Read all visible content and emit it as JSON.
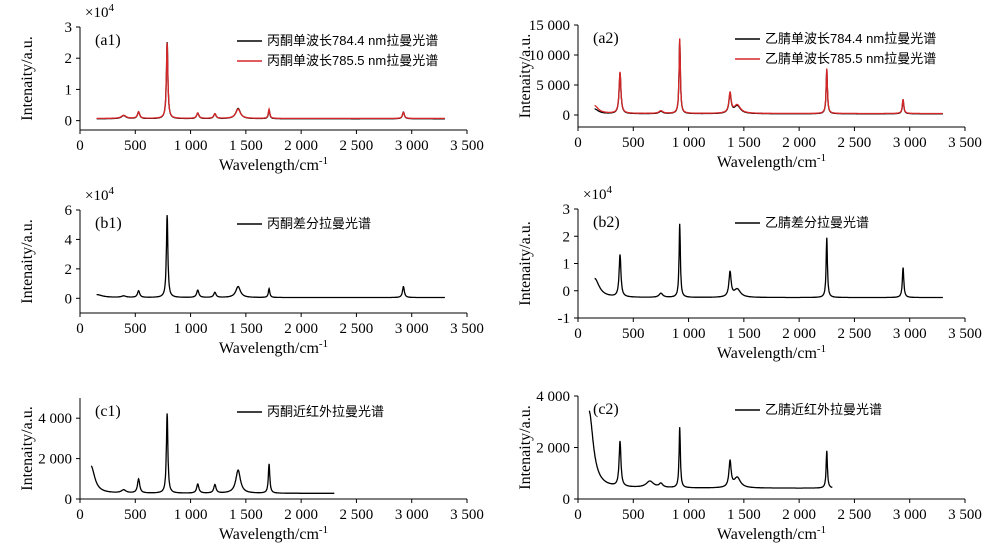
{
  "chart_data": [
    {
      "id": "a1",
      "type": "line",
      "panel_label": "(a1)",
      "scale_label": "×10",
      "scale_exp": "4",
      "xlabel": "Wavelength/cm",
      "xlabel_sup": "-1",
      "ylabel": "Intenaity/a.u.",
      "xlim": [
        0,
        3500
      ],
      "ylim": [
        -0.3,
        3
      ],
      "yticks": [
        0,
        1,
        2,
        3
      ],
      "ytick_labels": [
        "0",
        "1",
        "2",
        "3"
      ],
      "xticks": [
        0,
        500,
        1000,
        1500,
        2000,
        2500,
        3000,
        3500
      ],
      "xtick_labels": [
        "0",
        "500",
        "1 000",
        "1 500",
        "2 000",
        "2 500",
        "3 000",
        "3 500"
      ],
      "legend_position": "top-right",
      "series": [
        {
          "name": "丙酮单波长784.4 nm拉曼光谱",
          "color": "#000000",
          "x_range": [
            150,
            3300
          ],
          "baseline": 0.06,
          "peaks": [
            [
              395,
              0.1,
              25
            ],
            [
              530,
              0.22,
              12
            ],
            [
              788,
              2.45,
              8
            ],
            [
              1065,
              0.18,
              12
            ],
            [
              1220,
              0.16,
              12
            ],
            [
              1430,
              0.33,
              25
            ],
            [
              1710,
              0.28,
              8
            ],
            [
              2925,
              0.22,
              10
            ]
          ]
        },
        {
          "name": "丙酮单波长785.5 nm拉曼光谱",
          "color": "#d62728",
          "x_range": [
            150,
            3300
          ],
          "baseline": 0.07,
          "peaks": [
            [
              395,
              0.1,
              25
            ],
            [
              530,
              0.21,
              12
            ],
            [
              788,
              2.42,
              8
            ],
            [
              1065,
              0.17,
              12
            ],
            [
              1220,
              0.15,
              12
            ],
            [
              1430,
              0.3,
              25
            ],
            [
              1710,
              0.3,
              8
            ],
            [
              2925,
              0.2,
              10
            ]
          ]
        }
      ]
    },
    {
      "id": "a2",
      "type": "line",
      "panel_label": "(a2)",
      "scale_label": "",
      "scale_exp": "",
      "xlabel": "Wavelength/cm",
      "xlabel_sup": "-1",
      "ylabel": "Intenaity/a.u.",
      "xlim": [
        0,
        3500
      ],
      "ylim": [
        -2000,
        15000
      ],
      "yticks": [
        0,
        5000,
        10000,
        15000
      ],
      "ytick_labels": [
        "0",
        "5 000",
        "10 000",
        "15 000"
      ],
      "xticks": [
        0,
        500,
        1000,
        1500,
        2000,
        2500,
        3000,
        3500
      ],
      "xtick_labels": [
        "0",
        "500",
        "1 000",
        "1 500",
        "2 000",
        "2 500",
        "3 000",
        "3 500"
      ],
      "legend_position": "top-right",
      "series": [
        {
          "name": "乙腈单波长784.4 nm拉曼光谱",
          "color": "#000000",
          "x_range": [
            150,
            3300
          ],
          "baseline": 200,
          "peaks": [
            [
              150,
              800,
              40
            ],
            [
              380,
              6800,
              10
            ],
            [
              750,
              400,
              20
            ],
            [
              920,
              12300,
              7
            ],
            [
              1375,
              3200,
              12
            ],
            [
              1440,
              1300,
              35
            ],
            [
              2250,
              7400,
              7
            ],
            [
              2940,
              2300,
              8
            ]
          ]
        },
        {
          "name": "乙腈单波长785.5 nm拉曼光谱",
          "color": "#d62728",
          "x_range": [
            150,
            3300
          ],
          "baseline": 250,
          "peaks": [
            [
              150,
              1300,
              40
            ],
            [
              380,
              6900,
              10
            ],
            [
              750,
              450,
              20
            ],
            [
              920,
              12500,
              7
            ],
            [
              1375,
              3300,
              12
            ],
            [
              1440,
              1400,
              35
            ],
            [
              2250,
              7500,
              7
            ],
            [
              2940,
              2400,
              8
            ]
          ]
        }
      ]
    },
    {
      "id": "b1",
      "type": "line",
      "panel_label": "(b1)",
      "scale_label": "×10",
      "scale_exp": "4",
      "xlabel": "Wavelength/cm",
      "xlabel_sup": "-1",
      "ylabel": "Intenaity/a.u.",
      "xlim": [
        0,
        3500
      ],
      "ylim": [
        -1,
        6
      ],
      "yticks": [
        0,
        2,
        4,
        6
      ],
      "ytick_labels": [
        "0",
        "2",
        "4",
        "6"
      ],
      "xticks": [
        0,
        500,
        1000,
        1500,
        2000,
        2500,
        3000,
        3500
      ],
      "xtick_labels": [
        "0",
        "500",
        "1 000",
        "1 500",
        "2 000",
        "2 500",
        "3 000",
        "3 500"
      ],
      "legend_position": "top-right",
      "series": [
        {
          "name": "丙酮差分拉曼光谱",
          "color": "#000000",
          "x_range": [
            150,
            3300
          ],
          "baseline": 0.05,
          "peaks": [
            [
              150,
              0.2,
              60
            ],
            [
              395,
              0.1,
              25
            ],
            [
              530,
              0.45,
              12
            ],
            [
              788,
              5.6,
              8
            ],
            [
              1065,
              0.5,
              12
            ],
            [
              1220,
              0.35,
              12
            ],
            [
              1430,
              0.75,
              25
            ],
            [
              1710,
              0.6,
              8
            ],
            [
              2925,
              0.75,
              10
            ]
          ]
        }
      ]
    },
    {
      "id": "b2",
      "type": "line",
      "panel_label": "(b2)",
      "scale_label": "×10",
      "scale_exp": "4",
      "xlabel": "Wavelength/cm",
      "xlabel_sup": "-1",
      "ylabel": "Intenaity/a.u.",
      "xlim": [
        0,
        3500
      ],
      "ylim": [
        -1,
        3
      ],
      "yticks": [
        -1,
        0,
        1,
        2,
        3
      ],
      "ytick_labels": [
        "-1",
        "0",
        "1",
        "2",
        "3"
      ],
      "xticks": [
        0,
        500,
        1000,
        1500,
        2000,
        2500,
        3000,
        3500
      ],
      "xtick_labels": [
        "0",
        "500",
        "1 000",
        "1 500",
        "2 000",
        "2 500",
        "3 000",
        "3 500"
      ],
      "legend_position": "top-right",
      "series": [
        {
          "name": "乙腈差分拉曼光谱",
          "color": "#000000",
          "x_range": [
            150,
            3300
          ],
          "baseline": -0.25,
          "peaks": [
            [
              150,
              0.7,
              50
            ],
            [
              380,
              1.55,
              10
            ],
            [
              750,
              0.15,
              20
            ],
            [
              920,
              2.7,
              7
            ],
            [
              1375,
              0.9,
              12
            ],
            [
              1440,
              0.3,
              35
            ],
            [
              2250,
              2.2,
              7
            ],
            [
              2940,
              1.1,
              8
            ]
          ]
        }
      ]
    },
    {
      "id": "c1",
      "type": "line",
      "panel_label": "(c1)",
      "scale_label": "",
      "scale_exp": "",
      "xlabel": "Wavelength/cm",
      "xlabel_sup": "-1",
      "ylabel": "Intenaity/a.u.",
      "xlim": [
        0,
        3500
      ],
      "ylim": [
        0,
        5000
      ],
      "yticks": [
        0,
        2000,
        4000
      ],
      "ytick_labels": [
        "0",
        "2 000",
        "4 000"
      ],
      "xticks": [
        0,
        500,
        1000,
        1500,
        2000,
        2500,
        3000,
        3500
      ],
      "xtick_labels": [
        "0",
        "500",
        "1 000",
        "1 500",
        "2 000",
        "2 500",
        "3 000",
        "3 500"
      ],
      "legend_position": "top-right",
      "series": [
        {
          "name": "丙酮近红外拉曼光谱",
          "color": "#000000",
          "x_range": [
            100,
            2300
          ],
          "baseline": 280,
          "peaks": [
            [
              100,
              1350,
              40
            ],
            [
              395,
              150,
              25
            ],
            [
              530,
              700,
              12
            ],
            [
              788,
              3950,
              8
            ],
            [
              1065,
              450,
              12
            ],
            [
              1220,
              420,
              12
            ],
            [
              1430,
              1150,
              25
            ],
            [
              1710,
              1450,
              8
            ]
          ]
        }
      ]
    },
    {
      "id": "c2",
      "type": "line",
      "panel_label": "(c2)",
      "scale_label": "",
      "scale_exp": "",
      "xlabel": "Wavelength/cm",
      "xlabel_sup": "-1",
      "ylabel": "Intenaity/a.u.",
      "xlim": [
        0,
        3500
      ],
      "ylim": [
        0,
        4000
      ],
      "yticks": [
        0,
        2000,
        4000
      ],
      "ytick_labels": [
        "0",
        "2 000",
        "4 000"
      ],
      "xticks": [
        0,
        500,
        1000,
        1500,
        2000,
        2500,
        3000,
        3500
      ],
      "xtick_labels": [
        "0",
        "500",
        "1 000",
        "1 500",
        "2 000",
        "2 500",
        "3 000",
        "3 500"
      ],
      "legend_position": "top-right",
      "series": [
        {
          "name": "乙腈近红外拉曼光谱",
          "color": "#000000",
          "x_range": [
            100,
            2300
          ],
          "baseline": 420,
          "peaks": [
            [
              100,
              3000,
              45
            ],
            [
              380,
              1750,
              10
            ],
            [
              650,
              250,
              40
            ],
            [
              750,
              150,
              20
            ],
            [
              920,
              2350,
              7
            ],
            [
              1375,
              1000,
              12
            ],
            [
              1440,
              400,
              35
            ],
            [
              2250,
              1450,
              7
            ]
          ]
        }
      ]
    }
  ]
}
